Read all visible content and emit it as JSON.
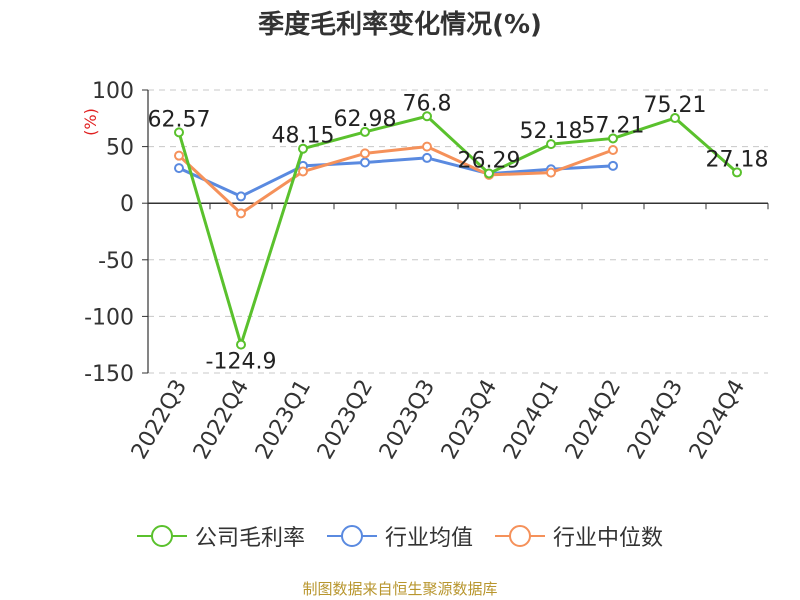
{
  "title": "季度毛利率变化情况(%)",
  "source": "制图数据来自恒生聚源数据库",
  "chart_data": {
    "type": "line",
    "title": "季度毛利率变化情况(%)",
    "ylabel": "(%)",
    "xlabel": "",
    "ylim": [
      -150,
      100
    ],
    "yticks": [
      "100",
      "50",
      "0",
      "-50",
      "-100",
      "-150"
    ],
    "categories": [
      "2022Q3",
      "2022Q4",
      "2023Q1",
      "2023Q2",
      "2023Q3",
      "2023Q4",
      "2024Q1",
      "2024Q2",
      "2024Q3",
      "2024Q4"
    ],
    "grid": true,
    "legend_position": "bottom",
    "series": [
      {
        "name": "公司毛利率",
        "color": "#5ac12d",
        "values": [
          62.57,
          -124.9,
          48.15,
          62.98,
          76.8,
          26.29,
          52.18,
          57.21,
          75.21,
          27.18
        ],
        "labels": [
          "62.57",
          "-124.9",
          "48.15",
          "62.98",
          "76.8",
          "26.29",
          "52.18",
          "57.21",
          "75.21",
          "27.18"
        ]
      },
      {
        "name": "行业均值",
        "color": "#5a8ae0",
        "values": [
          31,
          6,
          33,
          36,
          40,
          26,
          30,
          33,
          null,
          null
        ]
      },
      {
        "name": "行业中位数",
        "color": "#f5915a",
        "values": [
          42,
          -9,
          28,
          44,
          50,
          25,
          27,
          47,
          null,
          null
        ]
      }
    ]
  }
}
